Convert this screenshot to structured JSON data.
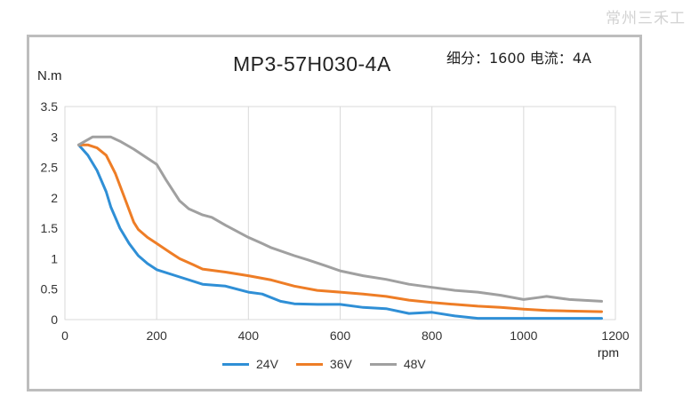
{
  "watermark": "常州三禾工",
  "chart_data": {
    "type": "line",
    "title": "MP3-57H030-4A",
    "subtitle": "细分：1600 电流：4A",
    "ylabel": "N.m",
    "xlabel": "rpm",
    "xlim": [
      0,
      1200
    ],
    "ylim": [
      0,
      3.5
    ],
    "xticks": [
      "0",
      "200",
      "400",
      "600",
      "800",
      "1000",
      "1200"
    ],
    "yticks": [
      "0",
      "0.5",
      "1",
      "1.5",
      "2",
      "2.5",
      "3",
      "3.5"
    ],
    "grid": "vertical",
    "legend_position": "bottom",
    "series": [
      {
        "name": "24V",
        "color": "#2f8fd6",
        "x": [
          30,
          50,
          70,
          90,
          100,
          120,
          140,
          160,
          180,
          200,
          250,
          300,
          350,
          400,
          430,
          470,
          500,
          550,
          600,
          650,
          700,
          750,
          800,
          850,
          900,
          950,
          1000,
          1050,
          1100,
          1170
        ],
        "y": [
          2.87,
          2.7,
          2.45,
          2.1,
          1.85,
          1.5,
          1.25,
          1.05,
          0.92,
          0.82,
          0.7,
          0.58,
          0.55,
          0.45,
          0.42,
          0.3,
          0.26,
          0.25,
          0.25,
          0.2,
          0.18,
          0.1,
          0.12,
          0.06,
          0.02,
          0.02,
          0.02,
          0.02,
          0.02,
          0.02
        ]
      },
      {
        "name": "36V",
        "color": "#ee7d26",
        "x": [
          30,
          50,
          70,
          90,
          110,
          130,
          150,
          160,
          180,
          200,
          230,
          250,
          280,
          300,
          350,
          400,
          450,
          500,
          550,
          600,
          650,
          700,
          750,
          800,
          850,
          900,
          950,
          1000,
          1050,
          1100,
          1170
        ],
        "y": [
          2.87,
          2.87,
          2.82,
          2.7,
          2.4,
          2.0,
          1.6,
          1.48,
          1.35,
          1.25,
          1.1,
          1.0,
          0.9,
          0.83,
          0.78,
          0.72,
          0.65,
          0.55,
          0.48,
          0.45,
          0.42,
          0.38,
          0.32,
          0.28,
          0.25,
          0.22,
          0.2,
          0.17,
          0.15,
          0.14,
          0.13
        ]
      },
      {
        "name": "48V",
        "color": "#a0a0a0",
        "x": [
          30,
          60,
          80,
          100,
          120,
          150,
          180,
          200,
          220,
          250,
          270,
          300,
          320,
          350,
          400,
          430,
          450,
          500,
          530,
          570,
          600,
          650,
          700,
          750,
          800,
          850,
          900,
          950,
          1000,
          1030,
          1050,
          1100,
          1170
        ],
        "y": [
          2.87,
          3.0,
          3.0,
          3.0,
          2.93,
          2.8,
          2.65,
          2.55,
          2.3,
          1.95,
          1.82,
          1.72,
          1.68,
          1.55,
          1.35,
          1.25,
          1.18,
          1.05,
          0.98,
          0.88,
          0.8,
          0.72,
          0.66,
          0.58,
          0.53,
          0.48,
          0.45,
          0.4,
          0.33,
          0.36,
          0.38,
          0.33,
          0.3
        ]
      }
    ]
  }
}
